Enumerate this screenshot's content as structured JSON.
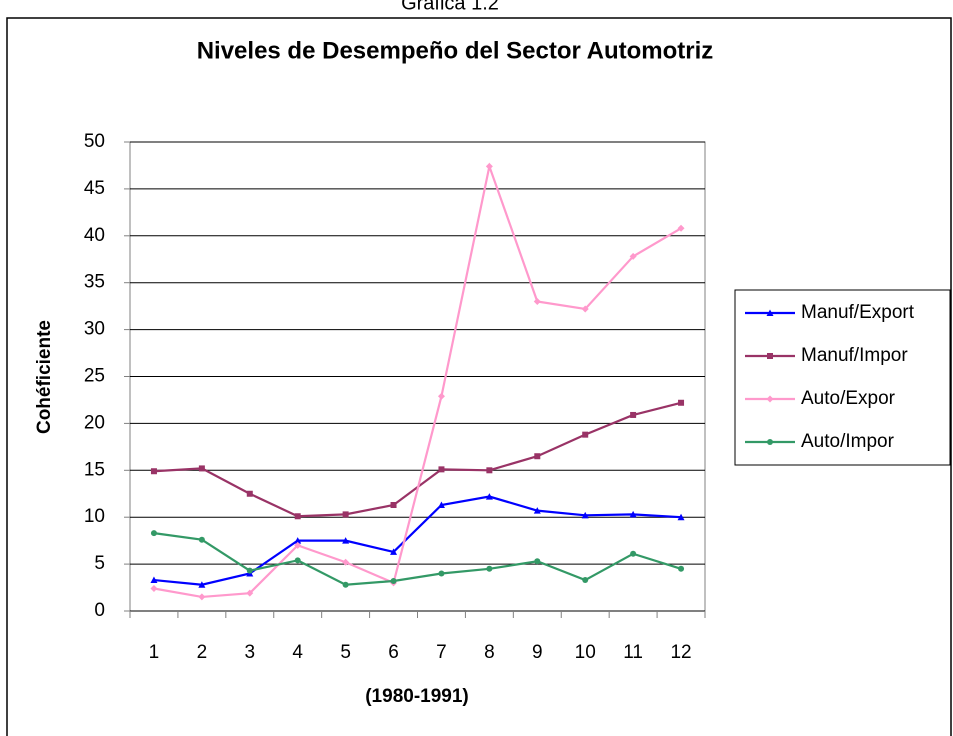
{
  "chart_data": {
    "type": "line",
    "caption": "Gráfica 1.2",
    "title": "Niveles de Desempeño del Sector Automotriz",
    "x_label": "(1980-1991)",
    "y_label": "Cohéficiente",
    "categories": [
      "1",
      "2",
      "3",
      "4",
      "5",
      "6",
      "7",
      "8",
      "9",
      "10",
      "11",
      "12"
    ],
    "series": [
      {
        "name": "Manuf/Export",
        "color": "#0000ff",
        "marker": "triangle",
        "values": [
          3.3,
          2.8,
          4.0,
          7.5,
          7.5,
          6.3,
          11.3,
          12.2,
          10.7,
          10.2,
          10.3,
          10.0
        ]
      },
      {
        "name": "Manuf/Impor",
        "color": "#993366",
        "marker": "square",
        "values": [
          14.9,
          15.2,
          12.5,
          10.1,
          10.3,
          11.3,
          15.1,
          15.0,
          16.5,
          18.8,
          20.9,
          22.2
        ]
      },
      {
        "name": "Auto/Expor",
        "color": "#ff99cc",
        "marker": "diamond",
        "values": [
          2.4,
          1.5,
          1.9,
          7.0,
          5.2,
          3.0,
          22.9,
          47.4,
          33.0,
          32.2,
          37.8,
          40.8
        ]
      },
      {
        "name": "Auto/Impor",
        "color": "#339966",
        "marker": "circle",
        "values": [
          8.3,
          7.6,
          4.3,
          5.4,
          2.8,
          3.2,
          4.0,
          4.5,
          5.3,
          3.3,
          6.1,
          4.5
        ]
      }
    ],
    "ylim": [
      0,
      50
    ],
    "yticks": [
      0,
      5,
      10,
      15,
      20,
      25,
      30,
      35,
      40,
      45,
      50
    ],
    "grid": true,
    "legend": "right"
  }
}
